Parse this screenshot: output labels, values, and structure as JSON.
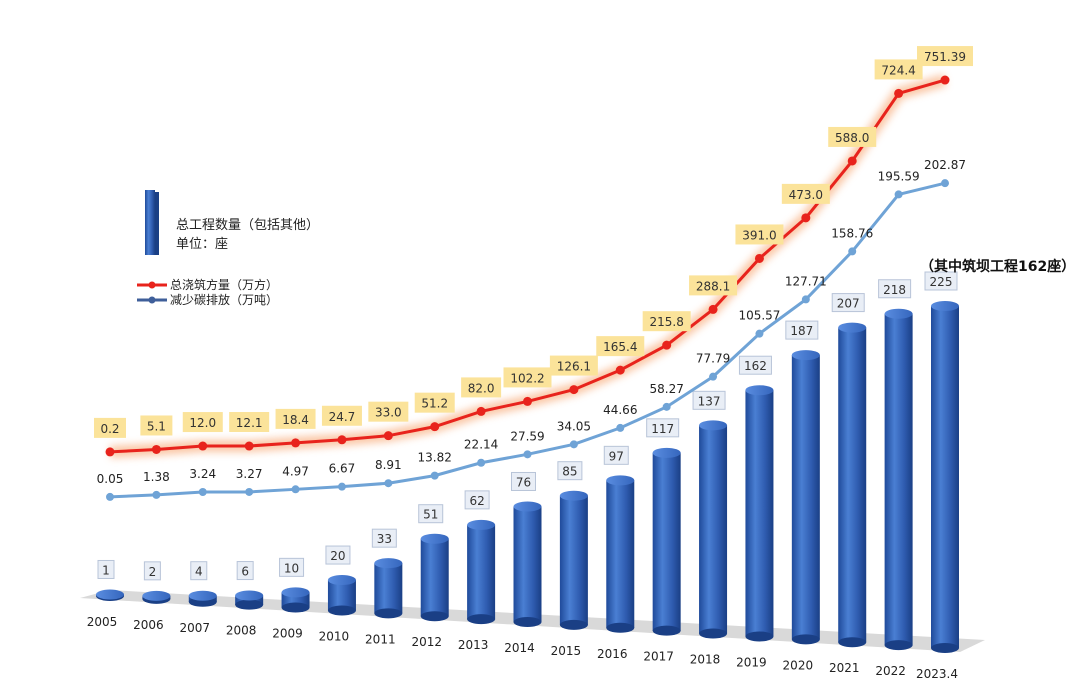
{
  "chart_data": {
    "type": "bar+line",
    "categories": [
      "2005",
      "2006",
      "2007",
      "2008",
      "2009",
      "2010",
      "2011",
      "2012",
      "2013",
      "2014",
      "2015",
      "2016",
      "2017",
      "2018",
      "2019",
      "2020",
      "2021",
      "2022",
      "2023.4"
    ],
    "series": [
      {
        "name": "总工程数量（包括其他）",
        "unit_label": "单位：座",
        "kind": "bar",
        "color": "#3a66b8",
        "values": [
          1,
          2,
          4,
          6,
          10,
          20,
          33,
          51,
          62,
          76,
          85,
          97,
          117,
          137,
          162,
          187,
          207,
          218,
          225
        ],
        "labels": [
          "1",
          "2",
          "4",
          "6",
          "10",
          "20",
          "33",
          "51",
          "62",
          "76",
          "85",
          "97",
          "117",
          "137",
          "162",
          "187",
          "207",
          "218",
          "225"
        ]
      },
      {
        "name": "总浇筑方量（万方）",
        "kind": "line",
        "color": "#e8231c",
        "label_bg": "#fbe39a",
        "values": [
          0.2,
          5.1,
          12.0,
          12.1,
          18.4,
          24.7,
          33.0,
          51.2,
          82.0,
          102.2,
          126.1,
          165.4,
          215.8,
          288.1,
          391.0,
          473.0,
          588.0,
          724.4,
          751.39
        ],
        "labels": [
          "0.2",
          "5.1",
          "12.0",
          "12.1",
          "18.4",
          "24.7",
          "33.0",
          "51.2",
          "82.0",
          "102.2",
          "126.1",
          "165.4",
          "215.8",
          "288.1",
          "391.0",
          "473.0",
          "588.0",
          "724.4",
          "751.39"
        ]
      },
      {
        "name": "减少碳排放（万吨）",
        "kind": "line",
        "color": "#6fa3d6",
        "values": [
          0.05,
          1.38,
          3.24,
          3.27,
          4.97,
          6.67,
          8.91,
          13.82,
          22.14,
          27.59,
          34.05,
          44.66,
          58.27,
          77.79,
          105.57,
          127.71,
          158.76,
          195.59,
          202.87
        ],
        "labels": [
          "0.05",
          "1.38",
          "3.24",
          "3.27",
          "4.97",
          "6.67",
          "8.91",
          "13.82",
          "22.14",
          "27.59",
          "34.05",
          "44.66",
          "58.27",
          "77.79",
          "105.57",
          "127.71",
          "158.76",
          "195.59",
          "202.87"
        ]
      }
    ],
    "annotation": "（其中筑坝工程162座）",
    "legend_placement": "upper-left",
    "grid": false
  }
}
